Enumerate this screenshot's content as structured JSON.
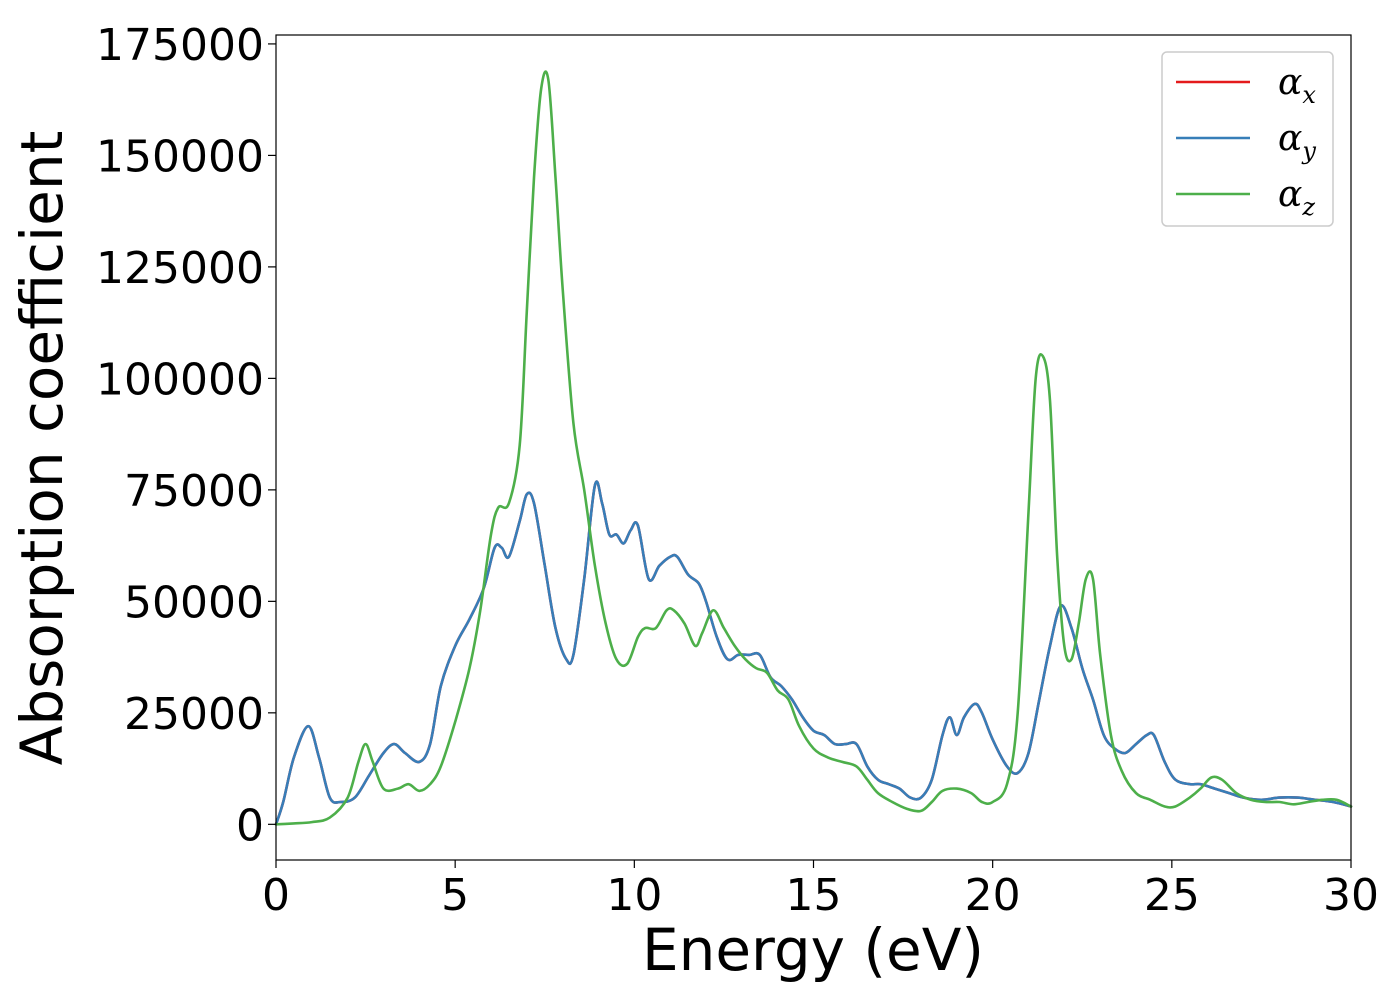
{
  "chart_data": {
    "type": "line",
    "title": "",
    "xlabel": "Energy (eV)",
    "ylabel": "Absorption coefficient",
    "xlim": [
      0,
      30
    ],
    "ylim": [
      -8000,
      177000
    ],
    "xticks": [
      0,
      5,
      10,
      15,
      20,
      25,
      30
    ],
    "yticks": [
      0,
      25000,
      50000,
      75000,
      100000,
      125000,
      150000,
      175000
    ],
    "xtick_labels": [
      "0",
      "5",
      "10",
      "15",
      "20",
      "25",
      "30"
    ],
    "ytick_labels": [
      "0",
      "25000",
      "50000",
      "75000",
      "100000",
      "125000",
      "150000",
      "175000"
    ],
    "grid": false,
    "legend_position": "top-right",
    "series": [
      {
        "name": "α",
        "subscript": "x",
        "color": "#e41a1c",
        "x": [
          0,
          0.2,
          0.5,
          0.9,
          1.2,
          1.5,
          1.8,
          2.2,
          2.6,
          3.0,
          3.3,
          3.6,
          4.0,
          4.3,
          4.6,
          5.0,
          5.4,
          5.8,
          6.1,
          6.3,
          6.5,
          6.8,
          7.0,
          7.2,
          7.5,
          7.8,
          8.1,
          8.3,
          8.6,
          8.9,
          9.1,
          9.3,
          9.5,
          9.7,
          9.9,
          10.1,
          10.4,
          10.7,
          11.0,
          11.2,
          11.5,
          11.8,
          12.0,
          12.3,
          12.6,
          12.9,
          13.2,
          13.5,
          13.8,
          14.1,
          14.4,
          14.7,
          15.0,
          15.3,
          15.6,
          15.9,
          16.2,
          16.5,
          16.8,
          17.1,
          17.4,
          17.7,
          18.0,
          18.3,
          18.6,
          18.8,
          19.0,
          19.2,
          19.5,
          19.7,
          20.0,
          20.4,
          20.7,
          21.0,
          21.3,
          21.6,
          21.9,
          22.2,
          22.5,
          22.8,
          23.1,
          23.4,
          23.7,
          24.0,
          24.3,
          24.5,
          24.8,
          25.1,
          25.5,
          25.8,
          26.2,
          26.6,
          27.0,
          27.5,
          28.0,
          28.5,
          29.0,
          29.5,
          30.0
        ],
        "y": [
          0,
          5000,
          15000,
          22000,
          15000,
          6000,
          5000,
          6000,
          11000,
          16000,
          18000,
          16000,
          14000,
          18000,
          31000,
          40000,
          46000,
          53000,
          62000,
          62000,
          60000,
          68000,
          74000,
          72000,
          58000,
          44000,
          37000,
          38000,
          55000,
          76000,
          72000,
          65000,
          65000,
          63000,
          66000,
          67000,
          55000,
          58000,
          60000,
          60000,
          56000,
          54000,
          50000,
          42000,
          37000,
          38000,
          38000,
          38000,
          33000,
          31000,
          28000,
          24000,
          21000,
          20000,
          18000,
          18000,
          18000,
          13000,
          10000,
          9000,
          8000,
          6000,
          6000,
          10000,
          20000,
          24000,
          20000,
          24000,
          27000,
          25000,
          19000,
          13000,
          11500,
          16000,
          28000,
          40000,
          49000,
          44000,
          35000,
          28000,
          20000,
          17000,
          16000,
          18000,
          20000,
          20000,
          14000,
          10000,
          9000,
          9000,
          8000,
          7000,
          6000,
          5500,
          6000,
          6000,
          5500,
          5000,
          4000
        ]
      },
      {
        "name": "α",
        "subscript": "y",
        "color": "#377eb8",
        "x": [
          0,
          0.2,
          0.5,
          0.9,
          1.2,
          1.5,
          1.8,
          2.2,
          2.6,
          3.0,
          3.3,
          3.6,
          4.0,
          4.3,
          4.6,
          5.0,
          5.4,
          5.8,
          6.1,
          6.3,
          6.5,
          6.8,
          7.0,
          7.2,
          7.5,
          7.8,
          8.1,
          8.3,
          8.6,
          8.9,
          9.1,
          9.3,
          9.5,
          9.7,
          9.9,
          10.1,
          10.4,
          10.7,
          11.0,
          11.2,
          11.5,
          11.8,
          12.0,
          12.3,
          12.6,
          12.9,
          13.2,
          13.5,
          13.8,
          14.1,
          14.4,
          14.7,
          15.0,
          15.3,
          15.6,
          15.9,
          16.2,
          16.5,
          16.8,
          17.1,
          17.4,
          17.7,
          18.0,
          18.3,
          18.6,
          18.8,
          19.0,
          19.2,
          19.5,
          19.7,
          20.0,
          20.4,
          20.7,
          21.0,
          21.3,
          21.6,
          21.9,
          22.2,
          22.5,
          22.8,
          23.1,
          23.4,
          23.7,
          24.0,
          24.3,
          24.5,
          24.8,
          25.1,
          25.5,
          25.8,
          26.2,
          26.6,
          27.0,
          27.5,
          28.0,
          28.5,
          29.0,
          29.5,
          30.0
        ],
        "y": [
          0,
          5000,
          15000,
          22000,
          15000,
          6000,
          5000,
          6000,
          11000,
          16000,
          18000,
          16000,
          14000,
          18000,
          31000,
          40000,
          46000,
          53000,
          62000,
          62000,
          60000,
          68000,
          74000,
          72000,
          58000,
          44000,
          37000,
          38000,
          55000,
          76000,
          72000,
          65000,
          65000,
          63000,
          66000,
          67000,
          55000,
          58000,
          60000,
          60000,
          56000,
          54000,
          50000,
          42000,
          37000,
          38000,
          38000,
          38000,
          33000,
          31000,
          28000,
          24000,
          21000,
          20000,
          18000,
          18000,
          18000,
          13000,
          10000,
          9000,
          8000,
          6000,
          6000,
          10000,
          20000,
          24000,
          20000,
          24000,
          27000,
          25000,
          19000,
          13000,
          11500,
          16000,
          28000,
          40000,
          49000,
          44000,
          35000,
          28000,
          20000,
          17000,
          16000,
          18000,
          20000,
          20000,
          14000,
          10000,
          9000,
          9000,
          8000,
          7000,
          6000,
          5500,
          6000,
          6000,
          5500,
          5000,
          4000
        ]
      },
      {
        "name": "α",
        "subscript": "z",
        "color": "#4daf4a",
        "x": [
          0,
          0.5,
          1.0,
          1.5,
          2.0,
          2.3,
          2.5,
          2.7,
          3.0,
          3.4,
          3.7,
          4.0,
          4.3,
          4.6,
          5.0,
          5.4,
          5.7,
          6.0,
          6.2,
          6.5,
          6.8,
          7.0,
          7.2,
          7.4,
          7.6,
          7.8,
          8.0,
          8.3,
          8.6,
          8.9,
          9.2,
          9.5,
          9.8,
          10.1,
          10.3,
          10.6,
          10.9,
          11.1,
          11.4,
          11.7,
          11.9,
          12.2,
          12.5,
          12.8,
          13.1,
          13.4,
          13.7,
          14.0,
          14.3,
          14.6,
          15.0,
          15.4,
          15.8,
          16.2,
          16.5,
          16.8,
          17.2,
          17.6,
          18.0,
          18.3,
          18.6,
          19.0,
          19.4,
          19.7,
          20.0,
          20.4,
          20.7,
          21.0,
          21.2,
          21.4,
          21.6,
          21.8,
          22.0,
          22.2,
          22.4,
          22.6,
          22.8,
          23.0,
          23.3,
          23.6,
          24.0,
          24.4,
          24.8,
          25.1,
          25.5,
          25.8,
          26.1,
          26.4,
          26.8,
          27.2,
          27.6,
          28.0,
          28.4,
          28.8,
          29.2,
          29.6,
          30.0
        ],
        "y": [
          0,
          200,
          500,
          1500,
          6000,
          14000,
          18000,
          14000,
          8000,
          8000,
          9000,
          7500,
          9000,
          13000,
          23000,
          35000,
          48000,
          65000,
          71000,
          72000,
          85000,
          115000,
          145000,
          165000,
          167000,
          145000,
          120000,
          90000,
          75000,
          58000,
          45000,
          37000,
          36000,
          42000,
          44000,
          44000,
          48000,
          48000,
          45000,
          40000,
          43000,
          48000,
          44000,
          40000,
          37000,
          35000,
          34000,
          30000,
          28000,
          22000,
          17000,
          15000,
          14000,
          13000,
          10000,
          7000,
          5000,
          3500,
          3000,
          5000,
          7500,
          8000,
          7000,
          5000,
          5000,
          9000,
          25000,
          70000,
          100000,
          105000,
          95000,
          60000,
          40000,
          37000,
          45000,
          55000,
          55000,
          38000,
          20000,
          12000,
          7000,
          5500,
          4000,
          4000,
          6000,
          8000,
          10500,
          10000,
          7000,
          5500,
          5000,
          5000,
          4500,
          5000,
          5500,
          5500,
          4000
        ]
      }
    ]
  }
}
